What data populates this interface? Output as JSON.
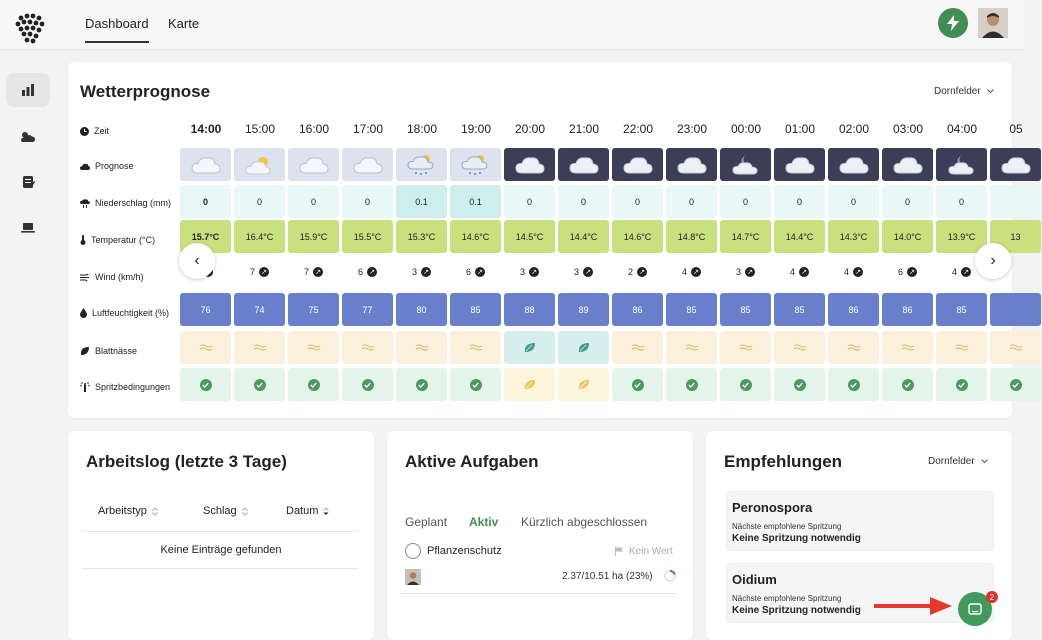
{
  "nav": {
    "tabs": [
      "Dashboard",
      "Karte"
    ]
  },
  "forecast": {
    "title": "Wetterprognose",
    "selector": "Dornfelder",
    "row_labels": {
      "time": "Zeit",
      "forecast": "Prognose",
      "rain": "Niederschlag (mm)",
      "temp": "Temperatur (°C)",
      "wind": "Wind (km/h)",
      "humidity": "Luftfeuchtigkeit (%)",
      "leaf": "Blattnässe",
      "spray": "Spritzbedingungen"
    },
    "hours": [
      {
        "time": "14:00",
        "rain": "0",
        "temp": "15.7°C",
        "wind": "",
        "hum": "76",
        "night": false,
        "rainy": false,
        "leafWet": false,
        "sprayOk": true
      },
      {
        "time": "15:00",
        "rain": "0",
        "temp": "16.4°C",
        "wind": "7",
        "hum": "74",
        "night": false,
        "rainy": false,
        "leafWet": false,
        "sprayOk": true
      },
      {
        "time": "16:00",
        "rain": "0",
        "temp": "15.9°C",
        "wind": "7",
        "hum": "75",
        "night": false,
        "rainy": false,
        "leafWet": false,
        "sprayOk": true
      },
      {
        "time": "17:00",
        "rain": "0",
        "temp": "15.5°C",
        "wind": "6",
        "hum": "77",
        "night": false,
        "rainy": false,
        "leafWet": false,
        "sprayOk": true
      },
      {
        "time": "18:00",
        "rain": "0.1",
        "temp": "15.3°C",
        "wind": "3",
        "hum": "80",
        "night": false,
        "rainy": true,
        "leafWet": false,
        "sprayOk": true
      },
      {
        "time": "19:00",
        "rain": "0.1",
        "temp": "14.6°C",
        "wind": "6",
        "hum": "85",
        "night": false,
        "rainy": true,
        "leafWet": false,
        "sprayOk": true
      },
      {
        "time": "20:00",
        "rain": "0",
        "temp": "14.5°C",
        "wind": "3",
        "hum": "88",
        "night": true,
        "rainy": false,
        "leafWet": true,
        "sprayOk": false
      },
      {
        "time": "21:00",
        "rain": "0",
        "temp": "14.4°C",
        "wind": "3",
        "hum": "89",
        "night": true,
        "rainy": false,
        "leafWet": true,
        "sprayOk": false
      },
      {
        "time": "22:00",
        "rain": "0",
        "temp": "14.6°C",
        "wind": "2",
        "hum": "86",
        "night": true,
        "rainy": false,
        "leafWet": false,
        "sprayOk": true
      },
      {
        "time": "23:00",
        "rain": "0",
        "temp": "14.8°C",
        "wind": "4",
        "hum": "85",
        "night": true,
        "rainy": false,
        "leafWet": false,
        "sprayOk": true
      },
      {
        "time": "00:00",
        "rain": "0",
        "temp": "14.7°C",
        "wind": "3",
        "hum": "85",
        "night": true,
        "rainy": false,
        "leafWet": false,
        "sprayOk": true
      },
      {
        "time": "01:00",
        "rain": "0",
        "temp": "14.4°C",
        "wind": "4",
        "hum": "85",
        "night": true,
        "rainy": false,
        "leafWet": false,
        "sprayOk": true
      },
      {
        "time": "02:00",
        "rain": "0",
        "temp": "14.3°C",
        "wind": "4",
        "hum": "86",
        "night": true,
        "rainy": false,
        "leafWet": false,
        "sprayOk": true
      },
      {
        "time": "03:00",
        "rain": "0",
        "temp": "14.0°C",
        "wind": "6",
        "hum": "86",
        "night": true,
        "rainy": false,
        "leafWet": false,
        "sprayOk": true
      },
      {
        "time": "04:00",
        "rain": "0",
        "temp": "13.9°C",
        "wind": "4",
        "hum": "85",
        "night": true,
        "rainy": false,
        "leafWet": false,
        "sprayOk": true
      },
      {
        "time": "05",
        "rain": "",
        "temp": "13",
        "wind": "",
        "hum": "",
        "night": true,
        "rainy": false,
        "leafWet": false,
        "sprayOk": true
      }
    ]
  },
  "worklog": {
    "title": "Arbeitslog (letzte 3 Tage)",
    "columns": [
      "Arbeitstyp",
      "Schlag",
      "Datum"
    ],
    "empty": "Keine Einträge gefunden"
  },
  "tasks": {
    "title": "Aktive Aufgaben",
    "tabs": [
      "Geplant",
      "Aktiv",
      "Kürzlich abgeschlossen"
    ],
    "item": {
      "name": "Pflanzenschutz",
      "flag": "Kein Wert",
      "progress": "2.37/10.51 ha (23%)"
    }
  },
  "recs": {
    "title": "Empfehlungen",
    "selector": "Dornfelder",
    "items": [
      {
        "name": "Peronospora",
        "sub": "Nächste empfohlene Spritzung",
        "value": "Keine Spritzung notwendig"
      },
      {
        "name": "Oidium",
        "sub": "Nächste empfohlene Spritzung",
        "value": "Keine Spritzung notwendig"
      }
    ]
  },
  "chat": {
    "badge": "2"
  },
  "colors": {
    "brand_green": "#3f8f52",
    "humidity": "#6a7fcc",
    "temp": "#c8e07e"
  }
}
